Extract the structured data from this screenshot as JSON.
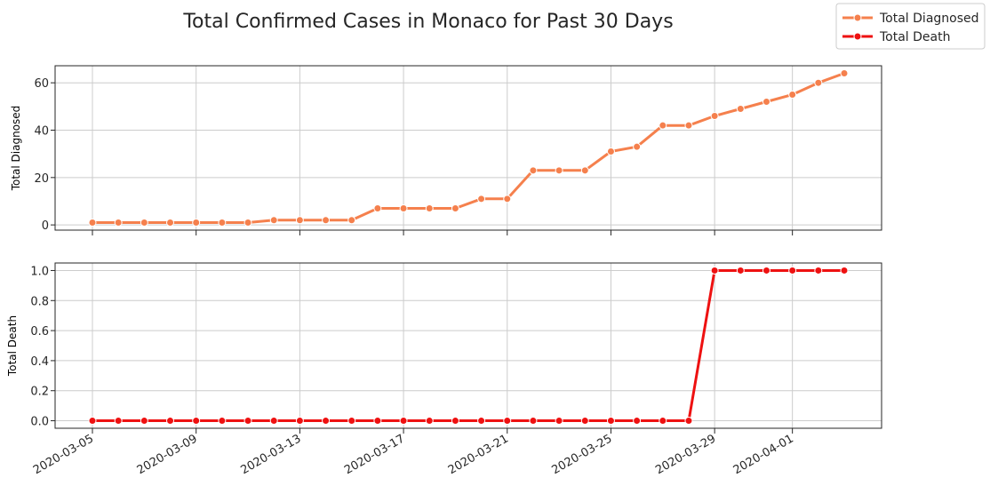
{
  "chart_data": {
    "type": "line",
    "title": "Total Confirmed Cases in Monaco for Past 30 Days",
    "x": [
      "2020-03-05",
      "2020-03-06",
      "2020-03-07",
      "2020-03-08",
      "2020-03-09",
      "2020-03-10",
      "2020-03-11",
      "2020-03-12",
      "2020-03-13",
      "2020-03-14",
      "2020-03-15",
      "2020-03-16",
      "2020-03-17",
      "2020-03-18",
      "2020-03-19",
      "2020-03-20",
      "2020-03-21",
      "2020-03-22",
      "2020-03-23",
      "2020-03-24",
      "2020-03-25",
      "2020-03-26",
      "2020-03-27",
      "2020-03-28",
      "2020-03-29",
      "2020-03-30",
      "2020-03-31",
      "2020-04-01",
      "2020-04-02",
      "2020-04-03"
    ],
    "xticks": [
      "2020-03-05",
      "2020-03-09",
      "2020-03-13",
      "2020-03-17",
      "2020-03-21",
      "2020-03-25",
      "2020-03-29",
      "2020-04-01"
    ],
    "legend": {
      "placement": "top-right",
      "entries": [
        "Total Diagnosed",
        "Total Death"
      ]
    },
    "grid": true,
    "series": [
      {
        "name": "Total Diagnosed",
        "color": "#f5804d",
        "ylabel": "Total Diagnosed",
        "ylim": [
          -2.2,
          67.2
        ],
        "yticks": [
          "0",
          "20",
          "40",
          "60"
        ],
        "yticks_values": [
          0,
          20,
          40,
          60
        ],
        "values": [
          1,
          1,
          1,
          1,
          1,
          1,
          1,
          2,
          2,
          2,
          2,
          7,
          7,
          7,
          7,
          11,
          11,
          23,
          23,
          23,
          31,
          33,
          42,
          42,
          46,
          49,
          52,
          55,
          60,
          64
        ]
      },
      {
        "name": "Total Death",
        "color": "#ee1111",
        "ylabel": "Total Death",
        "ylim": [
          -0.05,
          1.05
        ],
        "yticks": [
          "0.0",
          "0.2",
          "0.4",
          "0.6",
          "0.8",
          "1.0"
        ],
        "yticks_values": [
          0,
          0.2,
          0.4,
          0.6,
          0.8,
          1.0
        ],
        "values": [
          0,
          0,
          0,
          0,
          0,
          0,
          0,
          0,
          0,
          0,
          0,
          0,
          0,
          0,
          0,
          0,
          0,
          0,
          0,
          0,
          0,
          0,
          0,
          0,
          1,
          1,
          1,
          1,
          1,
          1
        ]
      }
    ]
  }
}
